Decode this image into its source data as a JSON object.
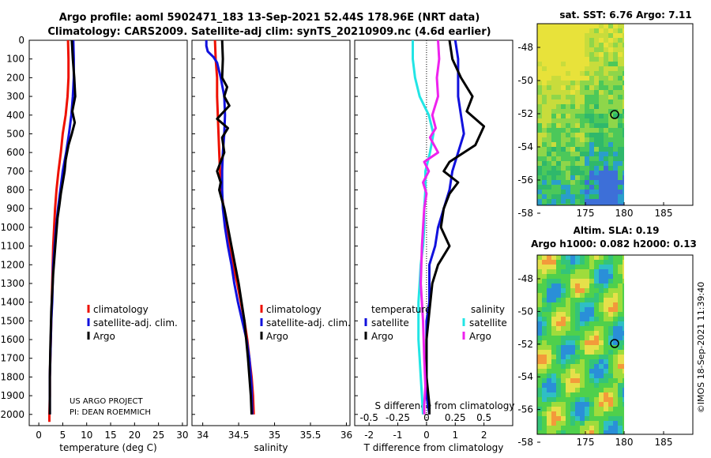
{
  "title": {
    "line1": "Argo profile: aoml 5902471_183 13-Sep-2021 52.44S 178.96E (NRT data)",
    "line2": "Climatology: CARS2009. Satellite-adj clim: synTS_20210909.nc (4.6d earlier)"
  },
  "credits": {
    "line1": "US ARGO PROJECT",
    "line2": "PI: DEAN ROEMMICH"
  },
  "watermark": "©IMOS 18-Sep-2021 11:39:40",
  "colors": {
    "red": "#ee1100",
    "blue": "#1111dd",
    "black": "#000000",
    "cyan": "#22e5e5",
    "magenta": "#ee22ee"
  },
  "chart_data": [
    {
      "id": "temperature",
      "type": "line",
      "xlabel": "temperature (deg C)",
      "xlim": [
        -2,
        31
      ],
      "xticks": [
        0,
        5,
        10,
        15,
        20,
        25,
        30
      ],
      "ylim": [
        2060,
        0
      ],
      "yticks": [
        0,
        100,
        200,
        300,
        400,
        500,
        600,
        700,
        800,
        900,
        1000,
        1100,
        1200,
        1300,
        1400,
        1500,
        1600,
        1700,
        1800,
        1900,
        2000
      ],
      "legend": [
        "climatology",
        "satellite-adj. clim.",
        "Argo"
      ],
      "series": [
        {
          "name": "climatology",
          "color": "#ee1100",
          "x": [
            6.1,
            6.2,
            6.2,
            6.0,
            5.6,
            5.0,
            4.6,
            4.1,
            3.7,
            3.4,
            3.2,
            3.0,
            2.9,
            2.8,
            2.7,
            2.6,
            2.5,
            2.4,
            2.3,
            2.3,
            2.2,
            2.2
          ],
          "y": [
            0,
            100,
            200,
            300,
            400,
            500,
            600,
            700,
            800,
            900,
            1000,
            1100,
            1200,
            1300,
            1400,
            1500,
            1600,
            1700,
            1800,
            1900,
            2000,
            2040
          ]
        },
        {
          "name": "satellite-adj. clim.",
          "color": "#1111dd",
          "x": [
            7.2,
            7.3,
            7.3,
            7.1,
            6.8,
            6.3,
            5.7,
            5.0,
            4.5,
            4.0,
            3.6,
            3.3,
            3.0,
            2.9,
            2.8,
            2.6,
            2.5,
            2.4,
            2.3,
            2.3,
            2.3
          ],
          "y": [
            0,
            100,
            200,
            300,
            400,
            500,
            600,
            700,
            800,
            900,
            1000,
            1100,
            1200,
            1300,
            1400,
            1500,
            1600,
            1700,
            1800,
            1900,
            2000
          ]
        },
        {
          "name": "Argo",
          "color": "#000000",
          "x": [
            6.9,
            7.1,
            7.4,
            7.6,
            7.0,
            7.5,
            6.9,
            6.2,
            5.6,
            5.4,
            5.0,
            4.6,
            4.3,
            3.9,
            3.6,
            3.3,
            3.0,
            2.8,
            2.6,
            2.5,
            2.4,
            2.3,
            2.3,
            2.3
          ],
          "y": [
            0,
            100,
            200,
            300,
            380,
            440,
            500,
            560,
            640,
            700,
            760,
            820,
            880,
            950,
            1050,
            1150,
            1250,
            1350,
            1450,
            1550,
            1650,
            1800,
            1950,
            2000
          ]
        }
      ]
    },
    {
      "id": "salinity",
      "type": "line",
      "xlabel": "salinity",
      "xlim": [
        33.85,
        36.05
      ],
      "xticks": [
        "34",
        "34.5",
        "35",
        "35.5",
        "36"
      ],
      "ylim": [
        2060,
        0
      ],
      "legend": [
        "climatology",
        "satellite-adj. clim.",
        "Argo"
      ],
      "series": [
        {
          "name": "climatology",
          "color": "#ee1100",
          "x": [
            34.17,
            34.18,
            34.2,
            34.2,
            34.21,
            34.22,
            34.23,
            34.24,
            34.26,
            34.29,
            34.33,
            34.37,
            34.42,
            34.48,
            34.53,
            34.58,
            34.62,
            34.65,
            34.68,
            34.7,
            34.71
          ],
          "y": [
            0,
            100,
            200,
            300,
            400,
            500,
            600,
            700,
            800,
            900,
            1000,
            1100,
            1200,
            1300,
            1400,
            1500,
            1600,
            1700,
            1800,
            1900,
            2000
          ]
        },
        {
          "name": "satellite-adj. clim.",
          "color": "#1111dd",
          "x": [
            34.05,
            34.05,
            34.07,
            34.15,
            34.2,
            34.25,
            34.3,
            34.31,
            34.3,
            34.28,
            34.27,
            34.27,
            34.28,
            34.31,
            34.35,
            34.4,
            34.44,
            34.49,
            34.55,
            34.61,
            34.65,
            34.68,
            34.69
          ],
          "y": [
            0,
            30,
            60,
            90,
            120,
            200,
            300,
            400,
            500,
            600,
            700,
            800,
            900,
            1000,
            1100,
            1200,
            1300,
            1400,
            1500,
            1600,
            1700,
            1850,
            2000
          ]
        },
        {
          "name": "Argo",
          "color": "#000000",
          "x": [
            34.27,
            34.28,
            34.27,
            34.34,
            34.3,
            34.37,
            34.2,
            34.35,
            34.27,
            34.3,
            34.2,
            34.25,
            34.23,
            34.3,
            34.35,
            34.4,
            34.45,
            34.5,
            34.58,
            34.63,
            34.67,
            34.68
          ],
          "y": [
            0,
            100,
            200,
            250,
            300,
            350,
            420,
            470,
            520,
            600,
            700,
            760,
            800,
            900,
            1000,
            1100,
            1200,
            1300,
            1500,
            1700,
            1900,
            2000
          ]
        }
      ]
    },
    {
      "id": "difference",
      "type": "line",
      "xlabel": "T difference from climatology",
      "xlabel2": "S difference from climatology",
      "xlim": [
        -2.5,
        3
      ],
      "xticks": [
        -2,
        -1,
        0,
        1,
        2
      ],
      "xticks2_values": [
        -0.5,
        -0.25,
        0,
        0.25,
        0.5
      ],
      "xticks2": [
        "-0.5",
        "-0.25",
        "0",
        "0.25",
        "0.5"
      ],
      "ylim": [
        2060,
        0
      ],
      "legend_left_title": "temperature",
      "legend_right_title": "salinity",
      "legend_left": [
        "satellite",
        "Argo"
      ],
      "legend_right": [
        "satellite",
        "Argo"
      ],
      "series": [
        {
          "name": "temperature satellite",
          "color": "#1111dd",
          "x": [
            1.0,
            1.1,
            1.1,
            1.1,
            1.2,
            1.3,
            1.1,
            0.9,
            0.8,
            0.6,
            0.4,
            0.3,
            0.1,
            0.1,
            0.1,
            0.0,
            0.0,
            0.0,
            0.0,
            0.0,
            0.1
          ],
          "y": [
            0,
            100,
            200,
            300,
            400,
            500,
            600,
            700,
            800,
            900,
            1000,
            1100,
            1200,
            1300,
            1400,
            1500,
            1600,
            1700,
            1800,
            1900,
            2000
          ]
        },
        {
          "name": "temperature Argo",
          "color": "#000000",
          "x": [
            0.8,
            0.9,
            1.2,
            1.6,
            1.4,
            2.0,
            1.7,
            0.8,
            0.6,
            1.1,
            0.8,
            0.6,
            0.5,
            0.8,
            0.4,
            0.2,
            0.1,
            0.0,
            0.0,
            0.1,
            0.1
          ],
          "y": [
            0,
            100,
            200,
            300,
            380,
            460,
            560,
            650,
            700,
            760,
            820,
            900,
            1000,
            1100,
            1200,
            1300,
            1450,
            1600,
            1800,
            1950,
            2000
          ]
        },
        {
          "name": "salinity satellite",
          "color": "#22e5e5",
          "x": [
            -0.12,
            -0.12,
            -0.1,
            -0.06,
            0.02,
            0.06,
            0.03,
            -0.01,
            -0.01,
            -0.02,
            -0.02,
            -0.03,
            -0.05,
            -0.06,
            -0.07,
            -0.07,
            -0.07,
            -0.06,
            -0.05,
            -0.04,
            -0.03
          ],
          "y": [
            0,
            100,
            200,
            300,
            400,
            500,
            600,
            700,
            800,
            900,
            1000,
            1100,
            1200,
            1300,
            1400,
            1500,
            1600,
            1700,
            1800,
            1900,
            2000
          ]
        },
        {
          "name": "salinity Argo",
          "color": "#ee22ee",
          "x": [
            0.1,
            0.11,
            0.09,
            0.1,
            0.05,
            0.08,
            0.03,
            0.1,
            -0.02,
            0.02,
            -0.03,
            0.0,
            -0.02,
            -0.04,
            -0.05,
            -0.03,
            -0.02,
            -0.01,
            -0.02,
            -0.02
          ],
          "y": [
            0,
            100,
            200,
            300,
            400,
            470,
            520,
            600,
            650,
            700,
            760,
            820,
            900,
            1100,
            1300,
            1500,
            1700,
            1850,
            1950,
            2000
          ]
        }
      ]
    },
    {
      "id": "sst_map",
      "type": "heatmap",
      "title": "sat. SST: 6.76 Argo: 7.11",
      "xticks": [
        "175",
        "180",
        "185"
      ],
      "yticks": [
        "-48",
        "-50",
        "-52",
        "-54",
        "-56",
        "-58"
      ],
      "marker": [
        178.96,
        -52.44
      ]
    },
    {
      "id": "sla_map",
      "type": "heatmap",
      "title_line1": "Altim. SLA: 0.19",
      "title_line2": "Argo h1000: 0.082 h2000: 0.13",
      "xticks": [
        "175",
        "180",
        "185"
      ],
      "yticks": [
        "-48",
        "-50",
        "-52",
        "-54",
        "-56",
        "-58"
      ],
      "marker": [
        178.96,
        -52.44
      ]
    }
  ]
}
